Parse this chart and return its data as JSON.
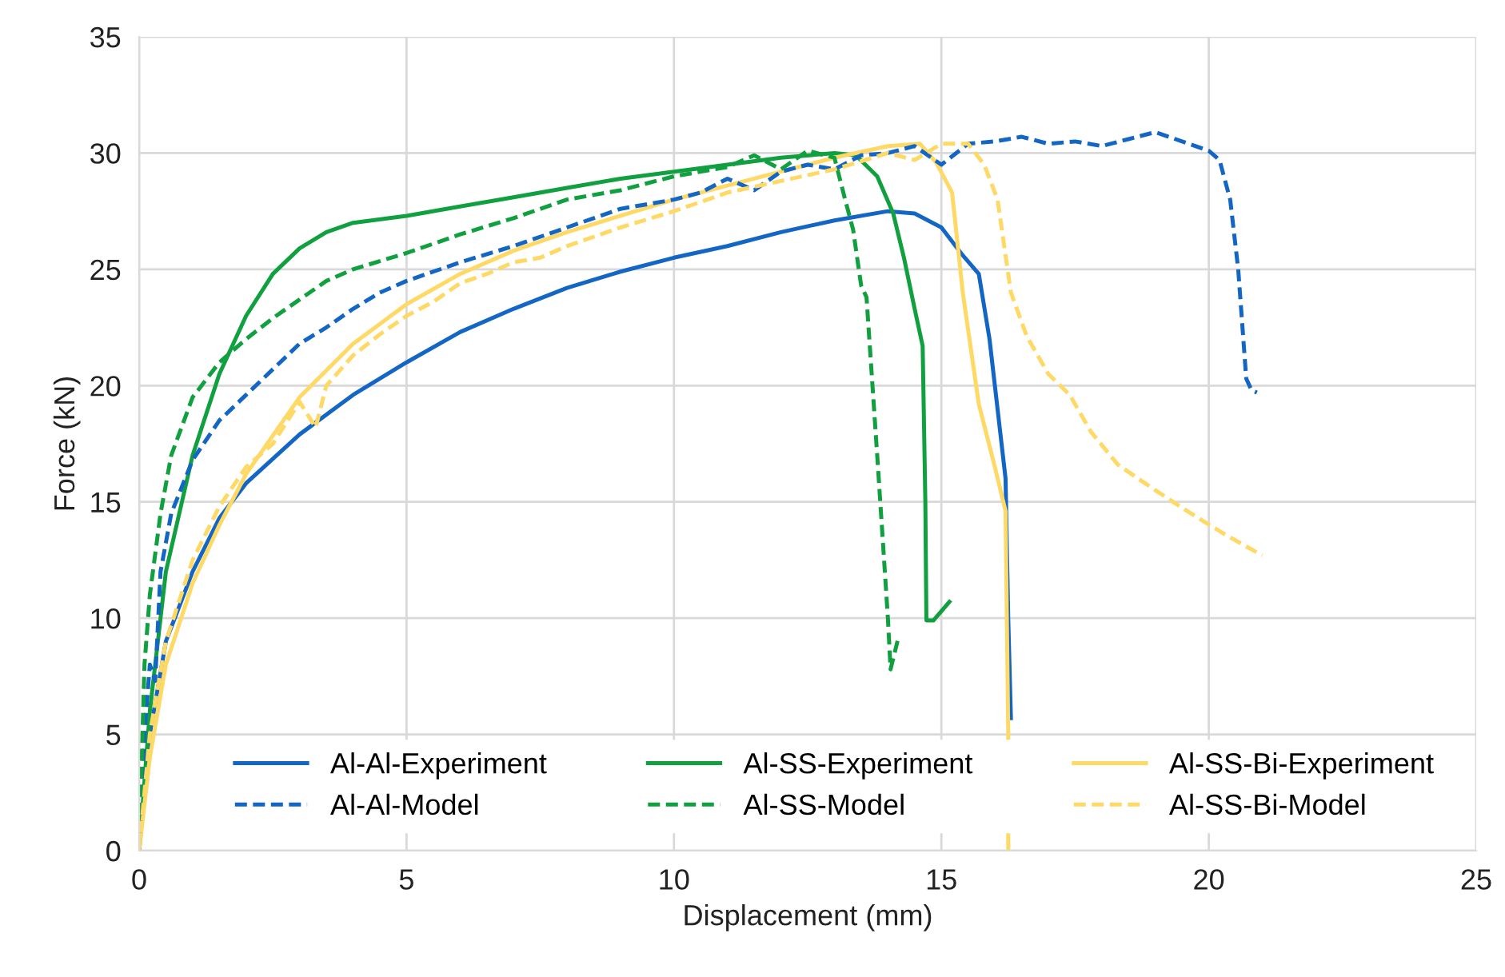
{
  "chart_data": {
    "type": "line",
    "xlabel": "Displacement (mm)",
    "ylabel": "Force (kN)",
    "xlim": [
      0,
      25
    ],
    "xticks": [
      0,
      5,
      10,
      15,
      20,
      25
    ],
    "ylim": [
      0,
      35
    ],
    "yticks": [
      0,
      5,
      10,
      15,
      20,
      25,
      30,
      35
    ],
    "grid": true,
    "legend": "bottom",
    "series": [
      {
        "name": "Al-Al-Experiment",
        "color": "#1466c4",
        "line_style": "solid",
        "x": [
          0,
          0.2,
          0.5,
          1,
          1.5,
          2,
          3,
          4,
          5,
          6,
          7,
          8,
          9,
          10,
          11,
          12,
          13,
          14,
          14.5,
          15,
          15.4,
          15.7,
          15.9,
          16.1,
          16.2,
          16.25,
          16.3
        ],
        "values": [
          0,
          5,
          9,
          12,
          14.3,
          15.8,
          17.9,
          19.6,
          21,
          22.3,
          23.3,
          24.2,
          24.9,
          25.5,
          26,
          26.6,
          27.1,
          27.5,
          27.4,
          26.8,
          25.6,
          24.8,
          22,
          18,
          16,
          10,
          5.7
        ]
      },
      {
        "name": "Al-SS-Experiment",
        "color": "#10a040",
        "line_style": "solid",
        "x": [
          0,
          0.2,
          0.5,
          1,
          1.5,
          2,
          2.5,
          3,
          3.5,
          4,
          5,
          6,
          7,
          8,
          9,
          10,
          11,
          12,
          13,
          13.4,
          13.8,
          14.1,
          14.3,
          14.5,
          14.65,
          14.7,
          14.72,
          14.85,
          15.15
        ],
        "values": [
          0,
          6,
          12,
          17,
          20.5,
          23,
          24.8,
          25.9,
          26.6,
          27,
          27.3,
          27.7,
          28.1,
          28.5,
          28.9,
          29.2,
          29.5,
          29.8,
          30,
          29.9,
          29,
          27.4,
          25.5,
          23.3,
          21.7,
          15,
          9.9,
          9.9,
          10.7
        ]
      },
      {
        "name": "Al-SS-Bi-Experiment",
        "color": "#ffd966",
        "line_style": "solid",
        "x": [
          0,
          0.2,
          0.5,
          1,
          1.5,
          2,
          3,
          4,
          5,
          6,
          7,
          8,
          9,
          10,
          11,
          12,
          13,
          14,
          14.6,
          14.9,
          15.2,
          15.4,
          15.7,
          16,
          16.2,
          16.25,
          16.25
        ],
        "values": [
          0,
          4,
          8,
          11.5,
          14,
          16.2,
          19.5,
          21.8,
          23.5,
          24.8,
          25.8,
          26.6,
          27.3,
          28,
          28.6,
          29.2,
          29.8,
          30.3,
          30.4,
          29.6,
          28.3,
          24,
          19.2,
          16.5,
          14.6,
          5,
          0
        ]
      },
      {
        "name": "Al-Al-Model",
        "color": "#1466c4",
        "line_style": "dashed",
        "x": [
          0,
          0.1,
          0.2,
          0.3,
          0.4,
          0.6,
          1,
          1.5,
          2,
          2.5,
          3,
          3.5,
          4,
          4.5,
          5,
          6,
          7,
          8,
          9,
          9.5,
          10,
          10.5,
          11,
          11.5,
          12,
          12.5,
          13,
          13.5,
          14,
          14.5,
          15,
          15.5,
          16,
          16.5,
          17,
          17.5,
          18,
          18.5,
          19,
          19.5,
          20,
          20.2,
          20.4,
          20.55,
          20.7,
          20.8,
          20.9
        ],
        "values": [
          0,
          5,
          8,
          7.3,
          12,
          14.5,
          16.8,
          18.5,
          19.6,
          20.7,
          21.8,
          22.5,
          23.3,
          24,
          24.5,
          25.3,
          26,
          26.8,
          27.6,
          27.8,
          28,
          28.3,
          28.9,
          28.4,
          29.2,
          29.5,
          29.3,
          29.9,
          30,
          30.3,
          29.5,
          30.4,
          30.5,
          30.7,
          30.4,
          30.5,
          30.3,
          30.6,
          30.9,
          30.5,
          30.1,
          29.7,
          28,
          25,
          20.3,
          19.8,
          19.7
        ]
      },
      {
        "name": "Al-SS-Model",
        "color": "#10a040",
        "line_style": "dashed",
        "x": [
          0,
          0.1,
          0.2,
          0.4,
          0.6,
          1,
          1.5,
          2,
          2.5,
          3,
          3.5,
          4,
          5,
          6,
          7,
          8,
          9,
          10,
          11,
          11.5,
          12,
          12.5,
          13,
          13.2,
          13.35,
          13.5,
          13.6,
          13.8,
          14,
          14.05,
          14.2
        ],
        "values": [
          0,
          8,
          11,
          14.5,
          17,
          19.5,
          21,
          22,
          22.9,
          23.7,
          24.5,
          25,
          25.7,
          26.5,
          27.2,
          28,
          28.4,
          29,
          29.4,
          29.9,
          29.3,
          30.1,
          29.8,
          28,
          26.7,
          24.3,
          23.8,
          17,
          10,
          7.8,
          9.2
        ]
      },
      {
        "name": "Al-SS-Bi-Model",
        "color": "#ffd966",
        "line_style": "dashed",
        "x": [
          0,
          0.2,
          0.5,
          1,
          1.5,
          2,
          2.5,
          3,
          3.3,
          3.5,
          4,
          4.5,
          5,
          5.5,
          6,
          6.5,
          7,
          7.5,
          8,
          9,
          10,
          11,
          12,
          13,
          14,
          14.5,
          15,
          15.5,
          15.8,
          16.05,
          16.3,
          16.6,
          17,
          17.4,
          17.8,
          18.3,
          19,
          19.6,
          20.3,
          21
        ],
        "values": [
          0,
          5,
          9,
          12.5,
          14.8,
          16.5,
          17.5,
          19.3,
          18.2,
          20,
          21.3,
          22.2,
          23,
          23.6,
          24.4,
          24.8,
          25.3,
          25.5,
          26,
          26.8,
          27.5,
          28.3,
          28.8,
          29.3,
          30,
          29.7,
          30.4,
          30.4,
          29.5,
          28,
          24,
          22.1,
          20.5,
          19.6,
          18,
          16.6,
          15.5,
          14.6,
          13.6,
          12.7
        ]
      }
    ]
  }
}
